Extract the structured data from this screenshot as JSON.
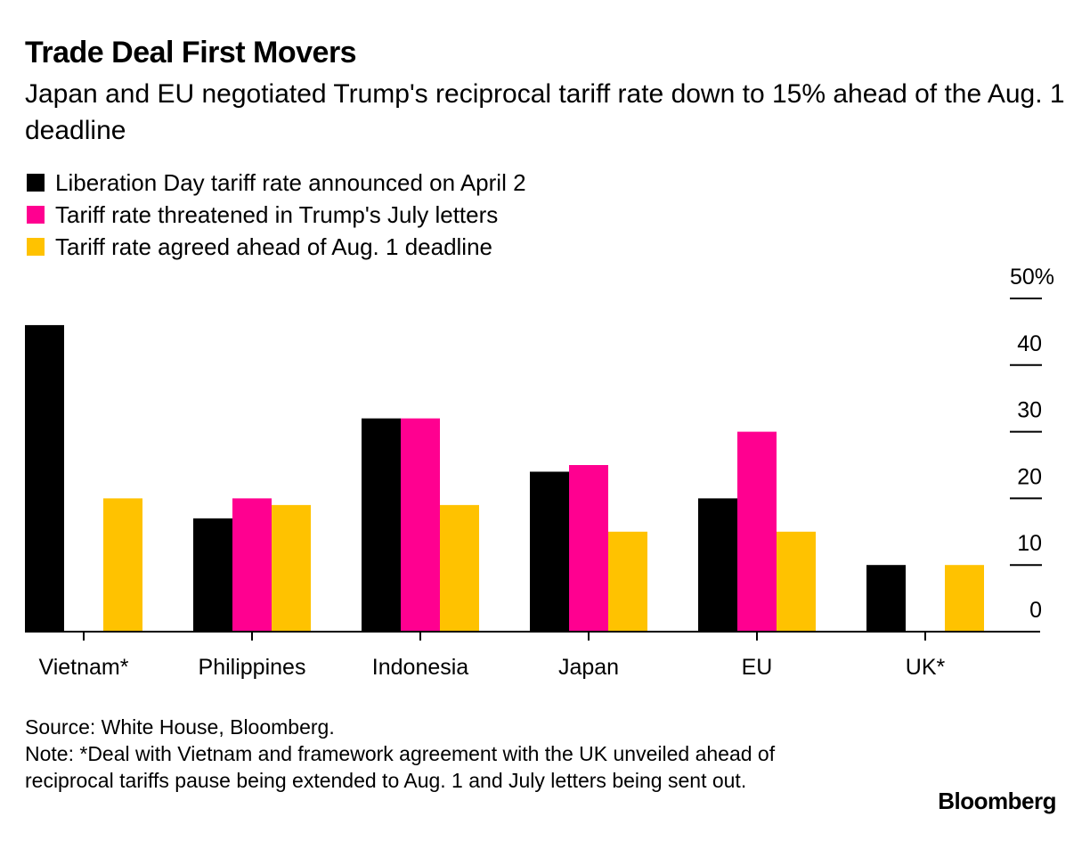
{
  "chart_data": {
    "type": "bar",
    "title": "Trade Deal First Movers",
    "subtitle": "Japan and EU negotiated Trump's reciprocal tariff rate down to 15% ahead of the Aug. 1 deadline",
    "xlabel": "",
    "ylabel": "",
    "ylim": [
      0,
      50
    ],
    "yticks": [
      0,
      10,
      20,
      30,
      40,
      50
    ],
    "ytick_labels": [
      "0",
      "10",
      "20",
      "30",
      "40",
      "50%"
    ],
    "y_axis_position": "right",
    "grid": false,
    "legend_position": "top-left",
    "categories": [
      "Vietnam*",
      "Philippines",
      "Indonesia",
      "Japan",
      "EU",
      "UK*"
    ],
    "series": [
      {
        "name": "Liberation Day tariff rate announced on April 2",
        "color": "#000000",
        "values": [
          46,
          17,
          32,
          24,
          20,
          10
        ]
      },
      {
        "name": "Tariff rate threatened in Trump's July letters",
        "color": "#ff0090",
        "values": [
          null,
          20,
          32,
          25,
          30,
          null
        ]
      },
      {
        "name": "Tariff rate agreed ahead of Aug. 1 deadline",
        "color": "#ffc200",
        "values": [
          20,
          19,
          19,
          15,
          15,
          10
        ]
      }
    ]
  },
  "footer": {
    "source": "Source: White House, Bloomberg.",
    "note": "Note: *Deal with Vietnam and framework agreement with the UK unveiled ahead of reciprocal tariffs pause being extended to Aug. 1 and July letters being sent out."
  },
  "brand": "Bloomberg"
}
